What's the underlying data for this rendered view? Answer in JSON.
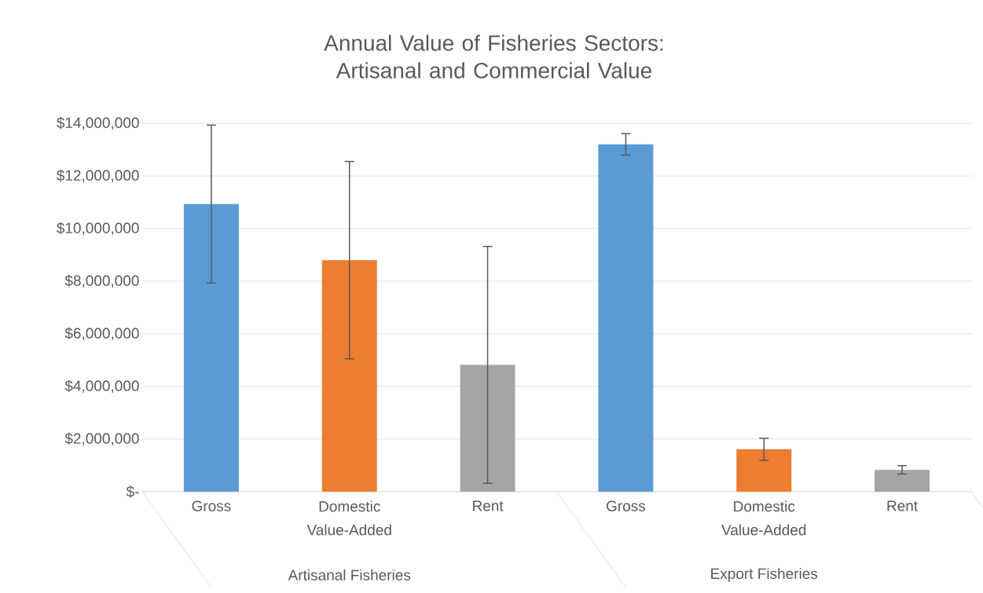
{
  "chart_data": {
    "type": "bar",
    "title": "Annual Value of Fisheries Sectors: Artisanal and Commercial Value",
    "categories": [
      "Gross",
      "Domestic Value-Added",
      "Rent",
      "Gross",
      "Domestic Value-Added",
      "Rent"
    ],
    "values": [
      10930000,
      8800000,
      4820000,
      13200000,
      1610000,
      830000
    ],
    "errors": [
      3000000,
      3750000,
      4500000,
      410000,
      420000,
      160000
    ],
    "colors": [
      "#5b9bd5",
      "#ed7d31",
      "#a5a5a5",
      "#5b9bd5",
      "#ed7d31",
      "#a5a5a5"
    ],
    "ylim": [
      0,
      14000000
    ],
    "yticks": [
      {
        "value": 0,
        "label": "$-"
      },
      {
        "value": 2000000,
        "label": "$2,000,000"
      },
      {
        "value": 4000000,
        "label": "$4,000,000"
      },
      {
        "value": 6000000,
        "label": "$6,000,000"
      },
      {
        "value": 8000000,
        "label": "$8,000,000"
      },
      {
        "value": 10000000,
        "label": "$10,000,000"
      },
      {
        "value": 12000000,
        "label": "$12,000,000"
      },
      {
        "value": 14000000,
        "label": "$14,000,000"
      }
    ],
    "grid": "y",
    "annotations": [
      "Artisanal Fisheries",
      "Export Fisheries"
    ]
  }
}
